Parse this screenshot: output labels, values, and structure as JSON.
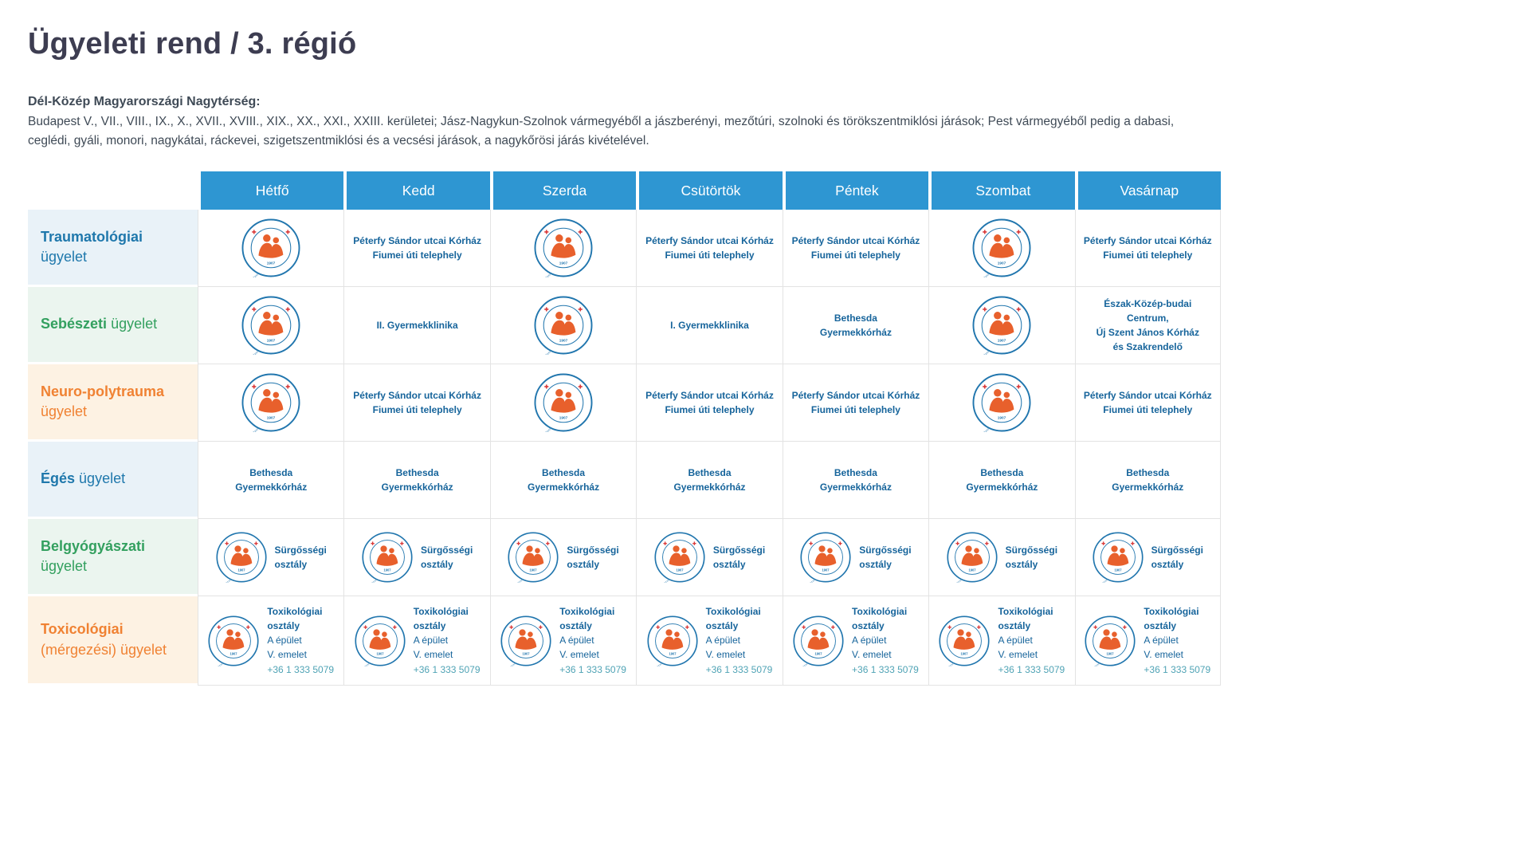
{
  "page": {
    "title": "Ügyeleti rend / 3. régió",
    "intro_heading": "Dél-Közép Magyarországi Nagytérség:",
    "intro_text": "Budapest V., VII., VIII., IX., X., XVII., XVIII., XIX., XX., XXI., XXIII. kerületei; Jász-Nagykun-Szolnok vármegyéből a jászberényi, mezőtúri, szolnoki és törökszentmiklósi járások; Pest vármegyéből pedig a dabasi, ceglédi, gyáli, monori, nagykátai, ráckevei, szigetszentmiklósi és a vecsési járások, a nagykőrösi járás kivételével."
  },
  "colors": {
    "title_text": "#3D3D51",
    "body_text": "#3F4A56",
    "header_bg": "#2E96D2",
    "label_blue": "#1F78AC",
    "label_green": "#33A05F",
    "label_orange": "#F08233",
    "row_bg_blue": "#E9F2F8",
    "row_bg_green": "#EBF5EF",
    "row_bg_orange": "#FDF2E3",
    "cell_text": "#16649B",
    "grid_line": "#E3E3E3",
    "logo_ring": "#2176AE",
    "logo_orange": "#E8602C",
    "logo_red": "#D93B3B",
    "phone_text": "#4FA3B5"
  },
  "table": {
    "days": [
      "Hétfő",
      "Kedd",
      "Szerda",
      "Csütörtök",
      "Péntek",
      "Szombat",
      "Vasárnap"
    ],
    "logo": {
      "top_text": "HEIM PÁL",
      "left_text": "Országos",
      "right_text": "Gyermekgyógyászati Intézet",
      "year": "1907"
    },
    "rows": [
      {
        "id": "traumatologiai",
        "theme": "blue",
        "label_strong": "Traumatológiai",
        "label_rest": "ügyelet",
        "label_inline": false,
        "cells": [
          {
            "type": "logo"
          },
          {
            "type": "text",
            "lines": [
              "Péterfy Sándor utcai Kórház",
              "Fiumei úti telephely"
            ]
          },
          {
            "type": "logo"
          },
          {
            "type": "text",
            "lines": [
              "Péterfy Sándor utcai Kórház",
              "Fiumei úti telephely"
            ]
          },
          {
            "type": "text",
            "lines": [
              "Péterfy Sándor utcai Kórház",
              "Fiumei úti telephely"
            ]
          },
          {
            "type": "logo"
          },
          {
            "type": "text",
            "lines": [
              "Péterfy Sándor utcai Kórház",
              "Fiumei úti telephely"
            ]
          }
        ]
      },
      {
        "id": "sebeszeti",
        "theme": "green",
        "label_strong": "Sebészeti",
        "label_rest": "ügyelet",
        "label_inline": true,
        "cells": [
          {
            "type": "logo"
          },
          {
            "type": "text",
            "lines": [
              "II. Gyermekklinika"
            ]
          },
          {
            "type": "logo"
          },
          {
            "type": "text",
            "lines": [
              "I. Gyermekklinika"
            ]
          },
          {
            "type": "text",
            "lines": [
              "Bethesda",
              "Gyermekkórház"
            ]
          },
          {
            "type": "logo"
          },
          {
            "type": "text",
            "lines": [
              "Észak-Közép-budai Centrum,",
              "Új Szent János Kórház",
              "és Szakrendelő"
            ]
          }
        ]
      },
      {
        "id": "neuro-polytrauma",
        "theme": "orange",
        "label_strong": "Neuro-polytrauma",
        "label_rest": "ügyelet",
        "label_inline": false,
        "cells": [
          {
            "type": "logo"
          },
          {
            "type": "text",
            "lines": [
              "Péterfy Sándor utcai Kórház",
              "Fiumei úti telephely"
            ]
          },
          {
            "type": "logo"
          },
          {
            "type": "text",
            "lines": [
              "Péterfy Sándor utcai Kórház",
              "Fiumei úti telephely"
            ]
          },
          {
            "type": "text",
            "lines": [
              "Péterfy Sándor utcai Kórház",
              "Fiumei úti telephely"
            ]
          },
          {
            "type": "logo"
          },
          {
            "type": "text",
            "lines": [
              "Péterfy Sándor utcai Kórház",
              "Fiumei úti telephely"
            ]
          }
        ]
      },
      {
        "id": "eges",
        "theme": "blue",
        "label_strong": "Égés",
        "label_rest": "ügyelet",
        "label_inline": true,
        "cells": [
          {
            "type": "text",
            "lines": [
              "Bethesda",
              "Gyermekkórház"
            ]
          },
          {
            "type": "text",
            "lines": [
              "Bethesda",
              "Gyermekkórház"
            ]
          },
          {
            "type": "text",
            "lines": [
              "Bethesda",
              "Gyermekkórház"
            ]
          },
          {
            "type": "text",
            "lines": [
              "Bethesda",
              "Gyermekkórház"
            ]
          },
          {
            "type": "text",
            "lines": [
              "Bethesda",
              "Gyermekkórház"
            ]
          },
          {
            "type": "text",
            "lines": [
              "Bethesda",
              "Gyermekkórház"
            ]
          },
          {
            "type": "text",
            "lines": [
              "Bethesda",
              "Gyermekkórház"
            ]
          }
        ]
      },
      {
        "id": "belgyogyaszati",
        "theme": "green",
        "label_strong": "Belgyógyászati",
        "label_rest": "ügyelet",
        "label_inline": false,
        "cells": [
          {
            "type": "logo_text",
            "bold": [
              "Sürgősségi",
              "osztály"
            ]
          },
          {
            "type": "logo_text",
            "bold": [
              "Sürgősségi",
              "osztály"
            ]
          },
          {
            "type": "logo_text",
            "bold": [
              "Sürgősségi",
              "osztály"
            ]
          },
          {
            "type": "logo_text",
            "bold": [
              "Sürgősségi",
              "osztály"
            ]
          },
          {
            "type": "logo_text",
            "bold": [
              "Sürgősségi",
              "osztály"
            ]
          },
          {
            "type": "logo_text",
            "bold": [
              "Sürgősségi",
              "osztály"
            ]
          },
          {
            "type": "logo_text",
            "bold": [
              "Sürgősségi",
              "osztály"
            ]
          }
        ]
      },
      {
        "id": "toxicologiai",
        "theme": "orange",
        "label_strong": "Toxicológiai",
        "label_rest": "(mérgezési) ügyelet",
        "label_inline": false,
        "cells": [
          {
            "type": "logo_text",
            "bold": [
              "Toxikológiai",
              "osztály"
            ],
            "regular": [
              "A épület",
              "V. emelet"
            ],
            "phone": "+36 1 333 5079"
          },
          {
            "type": "logo_text",
            "bold": [
              "Toxikológiai",
              "osztály"
            ],
            "regular": [
              "A épület",
              "V. emelet"
            ],
            "phone": "+36 1 333 5079"
          },
          {
            "type": "logo_text",
            "bold": [
              "Toxikológiai",
              "osztály"
            ],
            "regular": [
              "A épület",
              "V. emelet"
            ],
            "phone": "+36 1 333 5079"
          },
          {
            "type": "logo_text",
            "bold": [
              "Toxikológiai",
              "osztály"
            ],
            "regular": [
              "A épület",
              "V. emelet"
            ],
            "phone": "+36 1 333 5079"
          },
          {
            "type": "logo_text",
            "bold": [
              "Toxikológiai",
              "osztály"
            ],
            "regular": [
              "A épület",
              "V. emelet"
            ],
            "phone": "+36 1 333 5079"
          },
          {
            "type": "logo_text",
            "bold": [
              "Toxikológiai",
              "osztály"
            ],
            "regular": [
              "A épület",
              "V. emelet"
            ],
            "phone": "+36 1 333 5079"
          },
          {
            "type": "logo_text",
            "bold": [
              "Toxikológiai",
              "osztály"
            ],
            "regular": [
              "A épület",
              "V. emelet"
            ],
            "phone": "+36 1 333 5079"
          }
        ]
      }
    ]
  }
}
